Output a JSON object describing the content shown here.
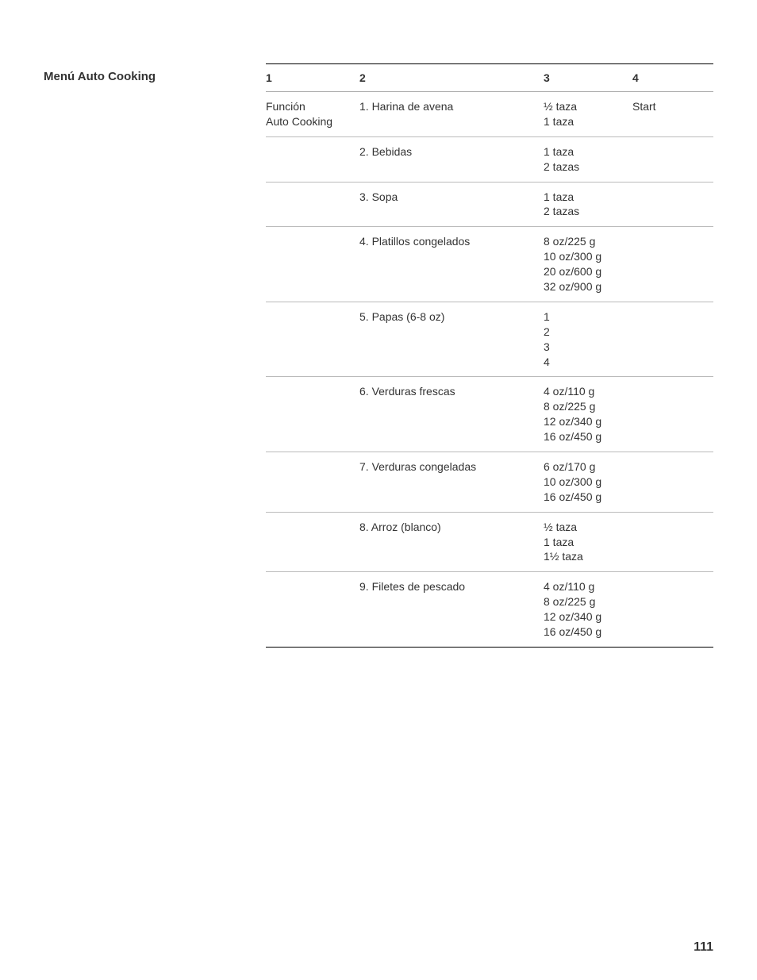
{
  "sectionTitle": "Menú Auto Cooking",
  "pageNumber": "111",
  "table": {
    "headers": {
      "c1": "1",
      "c2": "2",
      "c3": "3",
      "c4": "4"
    },
    "funcLabel": "Función\nAuto Cooking",
    "startLabel": "Start",
    "rows": [
      {
        "item": "1. Harina de avena",
        "qty": "½ taza\n1 taza"
      },
      {
        "item": "2. Bebidas",
        "qty": "1 taza\n2 tazas"
      },
      {
        "item": "3. Sopa",
        "qty": "1 taza\n2 tazas"
      },
      {
        "item": "4. Platillos congelados",
        "qty": "8 oz/225 g\n10 oz/300 g\n20 oz/600 g\n32 oz/900 g"
      },
      {
        "item": "5. Papas (6-8 oz)",
        "qty": "1\n2\n3\n4"
      },
      {
        "item": "6. Verduras frescas",
        "qty": "4 oz/110 g\n8 oz/225 g\n12 oz/340 g\n16 oz/450 g"
      },
      {
        "item": "7. Verduras congeladas",
        "qty": "6 oz/170 g\n10 oz/300 g\n16 oz/450 g"
      },
      {
        "item": "8. Arroz (blanco)",
        "qty": "½ taza\n1 taza\n1½ taza"
      },
      {
        "item": "9. Filetes de pescado",
        "qty": "4 oz/110 g\n8 oz/225 g\n12 oz/340 g\n16 oz/450 g"
      }
    ]
  }
}
